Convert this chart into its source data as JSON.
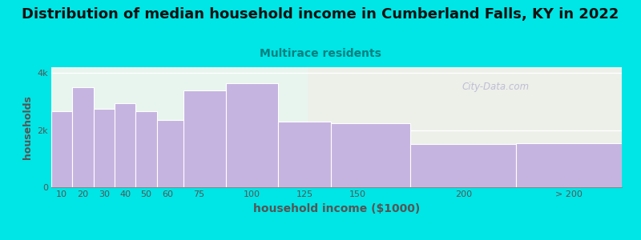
{
  "title": "Distribution of median household income in Cumberland Falls, KY in 2022",
  "subtitle": "Multirace residents",
  "xlabel": "household income ($1000)",
  "ylabel": "households",
  "bar_left_edges": [
    5,
    15,
    25,
    35,
    45,
    55,
    67.5,
    87.5,
    112.5,
    137.5,
    175,
    225
  ],
  "bar_right_edges": [
    15,
    25,
    35,
    45,
    55,
    67.5,
    87.5,
    112.5,
    137.5,
    175,
    225,
    275
  ],
  "bar_heights": [
    2650,
    3500,
    2750,
    2950,
    2650,
    2350,
    3400,
    3650,
    2300,
    2250,
    1500,
    1550
  ],
  "tick_positions": [
    10,
    20,
    30,
    40,
    50,
    60,
    75,
    100,
    125,
    150,
    200,
    250
  ],
  "tick_labels": [
    "10",
    "20",
    "30",
    "40",
    "50",
    "60",
    "75",
    "100",
    "125",
    "150",
    "200",
    "> 200"
  ],
  "bar_color": "#c5b3e0",
  "bar_edgecolor": "#ffffff",
  "yticks": [
    0,
    2000,
    4000
  ],
  "ytick_labels": [
    "0",
    "2k",
    "4k"
  ],
  "ylim": [
    0,
    4200
  ],
  "xlim": [
    5,
    275
  ],
  "bg_color": "#00e5e5",
  "plot_bg_left": "#e8f5ee",
  "plot_bg_right": "#f5f0fa",
  "title_fontsize": 13,
  "title_color": "#111111",
  "subtitle_color": "#008080",
  "subtitle_fontsize": 10,
  "axis_label_color": "#555555",
  "tick_color": "#555555",
  "watermark": "City-Data.com",
  "watermark_color": "#aaaacc"
}
